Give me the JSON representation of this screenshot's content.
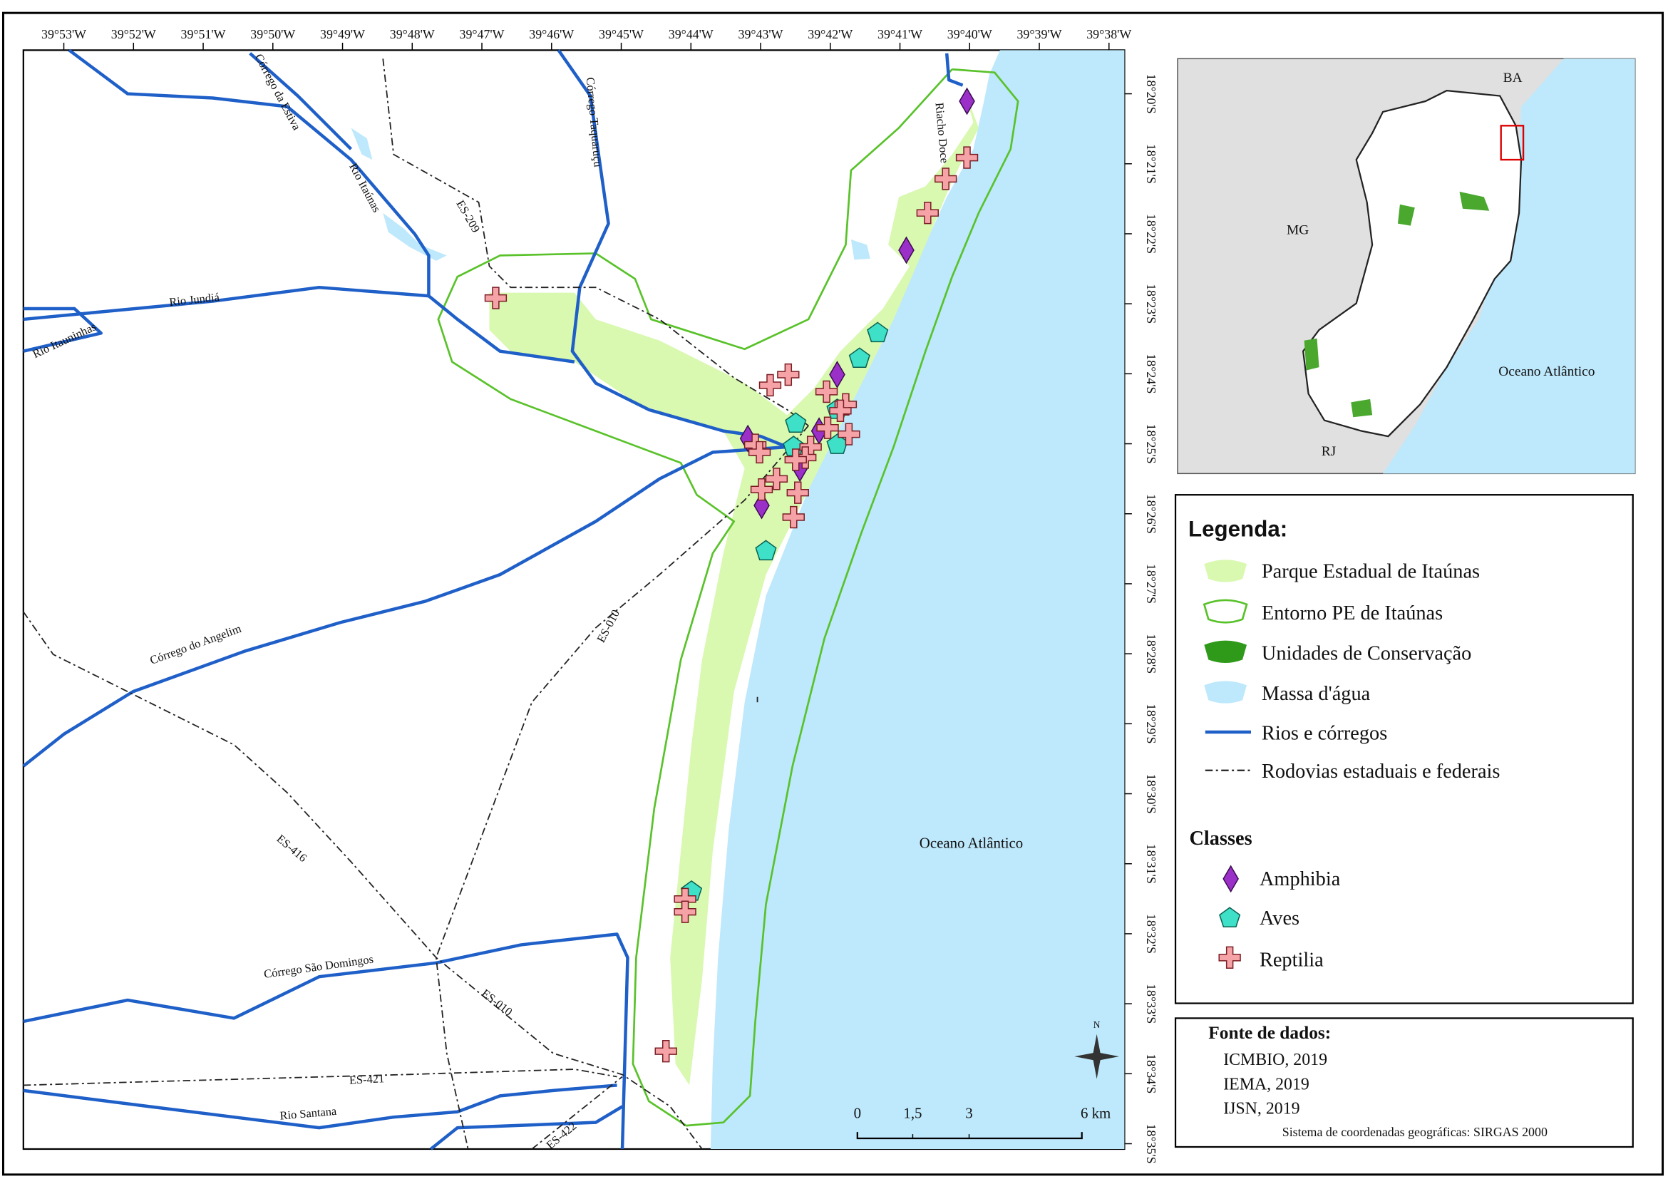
{
  "map": {
    "longitude_labels": [
      "39°53'W",
      "39°52'W",
      "39°51'W",
      "39°50'W",
      "39°49'W",
      "39°48'W",
      "39°47'W",
      "39°46'W",
      "39°45'W",
      "39°44'W",
      "39°43'W",
      "39°42'W",
      "39°41'W",
      "39°40'W",
      "39°39'W",
      "39°38'W"
    ],
    "latitude_labels": [
      "18°20'S",
      "18°21'S",
      "18°22'S",
      "18°23'S",
      "18°24'S",
      "18°25'S",
      "18°26'S",
      "18°27'S",
      "18°28'S",
      "18°29'S",
      "18°30'S",
      "18°31'S",
      "18°32'S",
      "18°33'S",
      "18°34'S",
      "18°35'S"
    ],
    "rivers": [
      "Córrego da Estiva",
      "Córrego Taquaruçu",
      "Rio Itaúnas",
      "Rio Jundiá",
      "Rio Itauninhas",
      "Riacho Doce",
      "Córrego do Angelim",
      "Córrego São Domingos",
      "Rio Santana"
    ],
    "roads": [
      "ES-209",
      "ES-010",
      "ES-416",
      "ES-010",
      "ES-421",
      "ES-422"
    ],
    "ocean_label": "Oceano Atlântico",
    "north_label": "N",
    "scale_labels": [
      "0",
      "1,5",
      "3",
      "6 km"
    ]
  },
  "inset": {
    "labels": [
      "BA",
      "MG",
      "RJ",
      "Oceano Atlântico"
    ]
  },
  "legend": {
    "title": "Legenda:",
    "items": [
      "Parque Estadual de Itaúnas",
      "Entorno PE de Itaúnas",
      "Unidades de Conservação",
      "Massa d'água",
      "Rios e córregos",
      "Rodovias estaduais e federais"
    ],
    "classes_title": "Classes",
    "classes": [
      "Amphibia",
      "Aves",
      "Reptilia"
    ]
  },
  "sources": {
    "title": "Fonte de dados:",
    "items": [
      "ICMBIO, 2019",
      "IEMA, 2019",
      "IJSN, 2019"
    ],
    "crs": "Sistema de coordenadas geográficas: SIRGAS 2000"
  }
}
